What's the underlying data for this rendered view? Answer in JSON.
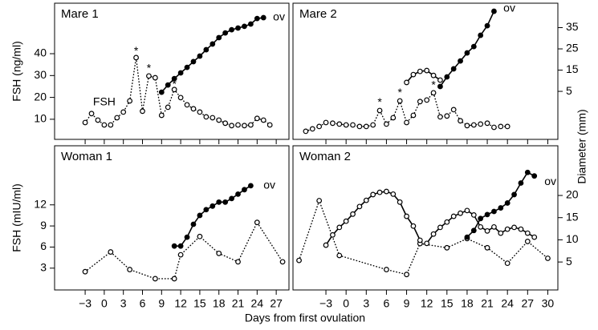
{
  "shared": {
    "xlabel": "Days from first ovulation",
    "y2label": "Diameter (mm)"
  },
  "chart_data": [
    {
      "type": "line",
      "title": "Mare 1",
      "ylabel": "FSH (ng/ml)",
      "xlim": [
        -7.8,
        29
      ],
      "ylim": [
        0.8,
        63.1
      ],
      "yticks": [
        10,
        20,
        30,
        40
      ],
      "y2lim": [
        -17.6,
        46.5
      ],
      "series": [
        {
          "color": "#000000",
          "style": "dotted",
          "marker": "open",
          "axis": "y",
          "x": [
            -3,
            -2,
            -1,
            0,
            1,
            2,
            3,
            4,
            5,
            6,
            7,
            8,
            9,
            10,
            11,
            12,
            13,
            14,
            15,
            16,
            17,
            18,
            19,
            20,
            21,
            22,
            23,
            24,
            25,
            26
          ],
          "values": [
            8.5,
            12.6,
            9.6,
            7.4,
            7.4,
            10.7,
            13.3,
            18.4,
            38.2,
            13.7,
            29.8,
            29,
            11.8,
            15.5,
            23.6,
            19.9,
            16.6,
            14.8,
            13.3,
            11.1,
            10.7,
            9.6,
            8.2,
            7.1,
            7.4,
            7.1,
            7.4,
            10.4,
            9.6,
            7.4
          ]
        },
        {
          "color": "#000000",
          "style": "solid",
          "marker": "filled",
          "axis": "y2",
          "x": [
            9,
            10,
            11,
            12,
            13,
            14,
            15,
            16,
            17,
            18,
            19,
            20,
            21,
            22,
            23,
            24,
            25
          ],
          "values": [
            4.6,
            8,
            11,
            13.7,
            16.3,
            19,
            21.6,
            24.6,
            27.3,
            30.3,
            32.5,
            34,
            34.8,
            35.6,
            36.7,
            39.3,
            39.7
          ]
        }
      ],
      "annotations": [
        {
          "text": "FSH",
          "x": 0,
          "y": 17.7
        },
        {
          "text": "*",
          "x": 5,
          "y": 41
        },
        {
          "text": "*",
          "x": 7,
          "y": 33.1
        },
        {
          "text": "*",
          "x": 11,
          "y": 25.8
        },
        {
          "text": "ov",
          "x": 26.5,
          "y": 39.7,
          "axis": "y2"
        }
      ]
    },
    {
      "type": "line",
      "title": "Mare 2",
      "xlim": [
        -7.9,
        31.5
      ],
      "ylim": [
        0.8,
        63.1
      ],
      "y2lim": [
        -17.6,
        46.5
      ],
      "y2ticks": [
        5,
        15,
        25,
        35
      ],
      "series": [
        {
          "color": "#000000",
          "style": "dotted",
          "marker": "open",
          "axis": "y",
          "x": [
            -6,
            -5,
            -4,
            -3,
            -2,
            -1,
            0,
            1,
            2,
            3,
            4,
            5,
            6,
            7,
            8,
            9,
            10,
            11,
            12,
            13,
            14,
            15,
            16,
            17,
            18,
            19,
            20,
            21,
            22,
            23,
            24
          ],
          "values": [
            4.5,
            5.6,
            6.7,
            8.5,
            8.2,
            7.8,
            7.4,
            7.4,
            6.7,
            6.7,
            7.4,
            14,
            7.8,
            10.7,
            18.4,
            8.5,
            11.8,
            18.1,
            18.8,
            22.1,
            11.1,
            11.5,
            14.4,
            9.3,
            7.1,
            7.4,
            7.8,
            8.2,
            6.3,
            6.7,
            6.7
          ]
        },
        {
          "color": "#000000",
          "style": "solid",
          "marker": "open",
          "axis": "y2",
          "x": [
            9,
            10,
            11,
            12,
            13,
            14
          ],
          "values": [
            9.2,
            12.9,
            14.4,
            14.8,
            12.5,
            10.3
          ]
        },
        {
          "color": "#000000",
          "style": "solid",
          "marker": "filled",
          "axis": "y2",
          "x": [
            14,
            15,
            16,
            17,
            18,
            19,
            20,
            21,
            22
          ],
          "values": [
            7.3,
            11.8,
            15.6,
            19.3,
            23.1,
            26.1,
            31.4,
            35.9,
            42.7
          ]
        }
      ],
      "annotations": [
        {
          "text": "*",
          "x": 5,
          "y": 17.5
        },
        {
          "text": "*",
          "x": 8,
          "y": 22
        },
        {
          "text": "*",
          "x": 13,
          "y": 25.5
        },
        {
          "text": "ov",
          "x": 23.4,
          "y": 44,
          "axis": "y2"
        }
      ]
    },
    {
      "type": "line",
      "title": "Woman 1",
      "ylabel": "FSH (mIU/ml)",
      "xlim": [
        -7.8,
        29
      ],
      "xticks": [
        {
          "value": -3,
          "label": "−3"
        },
        0,
        3,
        6,
        9,
        12,
        15,
        18,
        21,
        24,
        27
      ],
      "ylim": [
        -0.1,
        20.4
      ],
      "yticks": [
        3,
        6,
        9,
        12
      ],
      "y2lim": [
        -1.3,
        31.2
      ],
      "series": [
        {
          "color": "#000000",
          "style": "dotted",
          "marker": "open",
          "axis": "y",
          "x": [
            -3,
            1,
            4,
            8,
            11,
            12,
            15,
            18,
            21,
            24,
            28
          ],
          "values": [
            2.5,
            5.3,
            2.8,
            1.5,
            1.5,
            4.9,
            7.5,
            5.1,
            3.9,
            9.5,
            3.9
          ]
        },
        {
          "color": "#000000",
          "style": "solid",
          "marker": "filled",
          "axis": "y2",
          "x": [
            11,
            12,
            13,
            14,
            15,
            16,
            17,
            18,
            19,
            20,
            21,
            22,
            23
          ],
          "values": [
            8.6,
            8.6,
            10.6,
            13.5,
            15.5,
            16.8,
            17.6,
            18.5,
            18.5,
            19.3,
            20.3,
            21.3,
            22.2
          ]
        }
      ],
      "annotations": [
        {
          "text": "ov",
          "x": 25,
          "y": 22.2,
          "axis": "y2"
        }
      ]
    },
    {
      "type": "line",
      "title": "Woman 2",
      "xlim": [
        -7.9,
        31.5
      ],
      "xticks": [
        {
          "value": -3,
          "label": "−3"
        },
        0,
        3,
        6,
        9,
        12,
        15,
        18,
        21,
        24,
        27,
        30
      ],
      "ylim": [
        -0.1,
        20.4
      ],
      "y2lim": [
        -1.3,
        31.2
      ],
      "y2ticks": [
        5,
        10,
        15,
        20
      ],
      "series": [
        {
          "color": "#000000",
          "style": "dotted",
          "marker": "open",
          "axis": "y",
          "x": [
            -7,
            -4,
            -1,
            6,
            9,
            11,
            15,
            18,
            21,
            24,
            27,
            30
          ],
          "values": [
            4.1,
            12.6,
            4.8,
            2.8,
            2.1,
            6.5,
            5.9,
            7.2,
            5.9,
            3.7,
            6.8,
            4.4
          ]
        },
        {
          "color": "#000000",
          "style": "solid",
          "marker": "open",
          "axis": "y2",
          "x": [
            -3,
            -2,
            -1,
            0,
            1,
            2,
            3,
            4,
            5,
            6,
            7,
            8,
            9,
            10,
            11
          ],
          "values": [
            8.8,
            11.1,
            12.8,
            14.2,
            15.8,
            17.5,
            18.9,
            20.2,
            20.7,
            20.9,
            20.3,
            18.5,
            15.3,
            13.1,
            9.9
          ]
        },
        {
          "color": "#000000",
          "style": "solid",
          "marker": "open",
          "axis": "y2",
          "x": [
            12,
            13,
            14,
            15,
            16,
            17,
            18,
            19,
            20,
            21,
            22,
            23,
            24,
            25,
            26,
            27,
            28
          ],
          "values": [
            9.2,
            11.3,
            12.8,
            14,
            15.3,
            16,
            16.6,
            15.6,
            12.9,
            12,
            12.9,
            11.5,
            12.4,
            12.8,
            12.4,
            11.5,
            10.6
          ]
        },
        {
          "color": "#000000",
          "style": "solid",
          "marker": "filled",
          "axis": "y2",
          "x": [
            18,
            19,
            20,
            21,
            22,
            23,
            24,
            25,
            26,
            27,
            28
          ],
          "values": [
            10.6,
            12.1,
            14.8,
            15.7,
            16.4,
            17.2,
            18.3,
            20.2,
            22.8,
            25.2,
            24.4
          ]
        }
      ],
      "annotations": [
        {
          "text": "ov",
          "x": 29.5,
          "y": 23,
          "axis": "y2"
        }
      ]
    }
  ]
}
